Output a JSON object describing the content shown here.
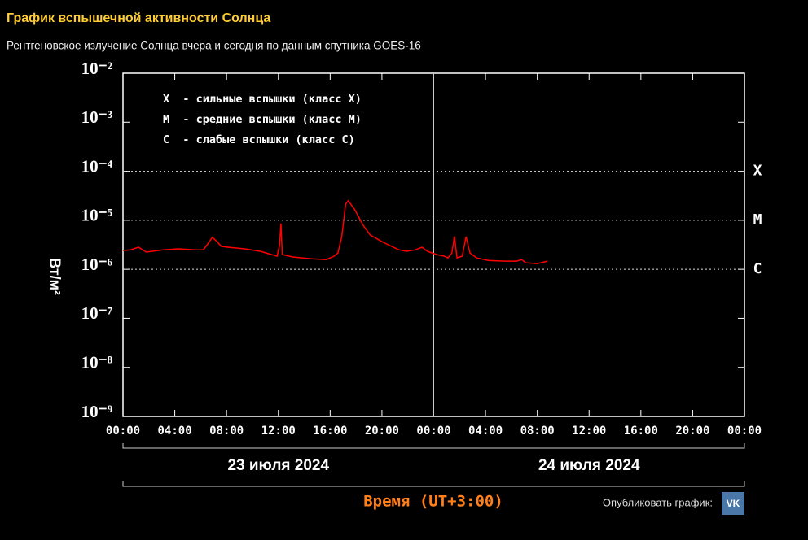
{
  "header": {
    "title": "График вспышечной активности Солнца",
    "subtitle": "Рентгеновское излучение Солнца вчера и сегодня по данным спутника GOES-16"
  },
  "chart_data": {
    "type": "line",
    "log_y": true,
    "y_label": "Вт/м²",
    "x_label": "Время (UT+3:00)",
    "xlim": [
      0,
      48
    ],
    "ylim": [
      1e-09,
      0.01
    ],
    "xticks": [
      {
        "value": 0,
        "label": "00:00"
      },
      {
        "value": 4,
        "label": "04:00"
      },
      {
        "value": 8,
        "label": "08:00"
      },
      {
        "value": 12,
        "label": "12:00"
      },
      {
        "value": 16,
        "label": "16:00"
      },
      {
        "value": 20,
        "label": "20:00"
      },
      {
        "value": 24,
        "label": "00:00"
      },
      {
        "value": 28,
        "label": "04:00"
      },
      {
        "value": 32,
        "label": "08:00"
      },
      {
        "value": 36,
        "label": "12:00"
      },
      {
        "value": 40,
        "label": "16:00"
      },
      {
        "value": 44,
        "label": "20:00"
      },
      {
        "value": 48,
        "label": "00:00"
      }
    ],
    "yticks": [
      {
        "value": 0.01,
        "label": "10⁻²"
      },
      {
        "value": 0.001,
        "label": "10⁻³"
      },
      {
        "value": 0.0001,
        "label": "10⁻⁴"
      },
      {
        "value": 1e-05,
        "label": "10⁻⁵"
      },
      {
        "value": 1e-06,
        "label": "10⁻⁶"
      },
      {
        "value": 1e-07,
        "label": "10⁻⁷"
      },
      {
        "value": 1e-08,
        "label": "10⁻⁸"
      },
      {
        "value": 1e-09,
        "label": "10⁻⁹"
      }
    ],
    "thresholds": [
      {
        "value": 0.0001,
        "label": "X"
      },
      {
        "value": 1e-05,
        "label": "M"
      },
      {
        "value": 1e-06,
        "label": "C"
      }
    ],
    "annotations": [
      "X  - сильные вспышки (класс X)",
      "M  - средние вспышки (класс M)",
      "C  - слабые вспышки (класс C)"
    ],
    "days": [
      {
        "label": "23 июля 2024",
        "range": [
          0,
          24
        ]
      },
      {
        "label": "24 июля 2024",
        "range": [
          24,
          48
        ]
      }
    ],
    "series": [
      {
        "color": "#ff0000",
        "x": [
          0,
          0.6,
          1.2,
          1.8,
          3.1,
          4.3,
          5.6,
          6.2,
          6.5,
          6.9,
          7.2,
          7.6,
          8.1,
          9.4,
          10.6,
          11.9,
          12.1,
          12.2,
          12.3,
          13.1,
          14.4,
          15.7,
          16.3,
          16.6,
          16.9,
          17.2,
          17.4,
          17.9,
          18.5,
          19.1,
          20.1,
          21.3,
          21.9,
          22.6,
          23.1,
          23.5,
          24.2,
          24.8,
          25.1,
          25.4,
          25.6,
          25.8,
          26.2,
          26.5,
          26.8,
          27.3,
          28.2,
          29.5,
          30.4,
          30.8,
          31.1,
          32.0,
          32.8
        ],
        "values": [
          2.42e-06,
          2.5e-06,
          2.82e-06,
          2.24e-06,
          2.5e-06,
          2.61e-06,
          2.5e-06,
          2.5e-06,
          3.16e-06,
          4.47e-06,
          3.83e-06,
          2.93e-06,
          2.82e-06,
          2.61e-06,
          2.33e-06,
          1.85e-06,
          3.16e-06,
          8.6e-06,
          2e-06,
          1.78e-06,
          1.65e-06,
          1.58e-06,
          1.85e-06,
          2.15e-06,
          4.64e-06,
          2.15e-05,
          2.51e-05,
          1.65e-05,
          8.25e-06,
          5e-06,
          3.55e-06,
          2.5e-06,
          2.33e-06,
          2.5e-06,
          2.82e-06,
          2.33e-06,
          2e-06,
          1.85e-06,
          1.71e-06,
          2.15e-06,
          4.7e-06,
          1.71e-06,
          1.85e-06,
          4.64e-06,
          2.15e-06,
          1.71e-06,
          1.52e-06,
          1.47e-06,
          1.47e-06,
          1.58e-06,
          1.36e-06,
          1.31e-06,
          1.47e-06
        ]
      }
    ]
  },
  "footer": {
    "share": "Опубликовать график:",
    "share_icon": "VK"
  }
}
